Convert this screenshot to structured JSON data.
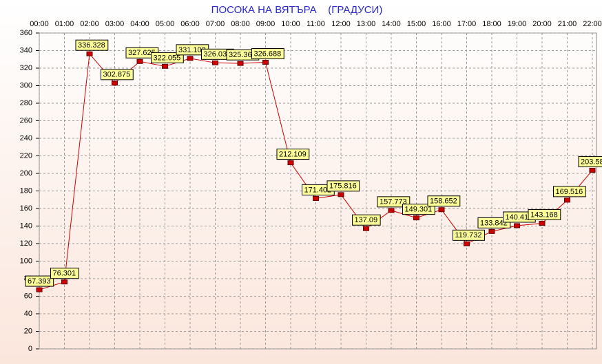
{
  "chart_data": {
    "type": "line",
    "title": "ПОСОКА НА ВЯТЪРА    (ГРАДУСИ)",
    "categories": [
      "00:00",
      "01:00",
      "02:00",
      "03:00",
      "04:00",
      "05:00",
      "06:00",
      "07:00",
      "08:00",
      "09:00",
      "10:00",
      "11:00",
      "12:00",
      "13:00",
      "14:00",
      "15:00",
      "16:00",
      "17:00",
      "18:00",
      "19:00",
      "20:00",
      "21:00",
      "22:00"
    ],
    "series": [
      {
        "name": "Посока",
        "color": "#cc0000",
        "values": [
          67.393,
          76.301,
          336.328,
          302.875,
          327.625,
          322.055,
          331.102,
          326.031,
          325.363,
          326.688,
          212.109,
          171.402,
          175.816,
          137.09,
          157.773,
          149.301,
          158.652,
          119.732,
          133.842,
          140.412,
          143.168,
          169.516,
          203.583
        ]
      }
    ],
    "ylim": [
      0,
      360
    ],
    "yticks": [
      0,
      20,
      40,
      60,
      80,
      100,
      120,
      140,
      160,
      180,
      200,
      220,
      240,
      260,
      280,
      300,
      320,
      340,
      360
    ],
    "grid": true
  }
}
